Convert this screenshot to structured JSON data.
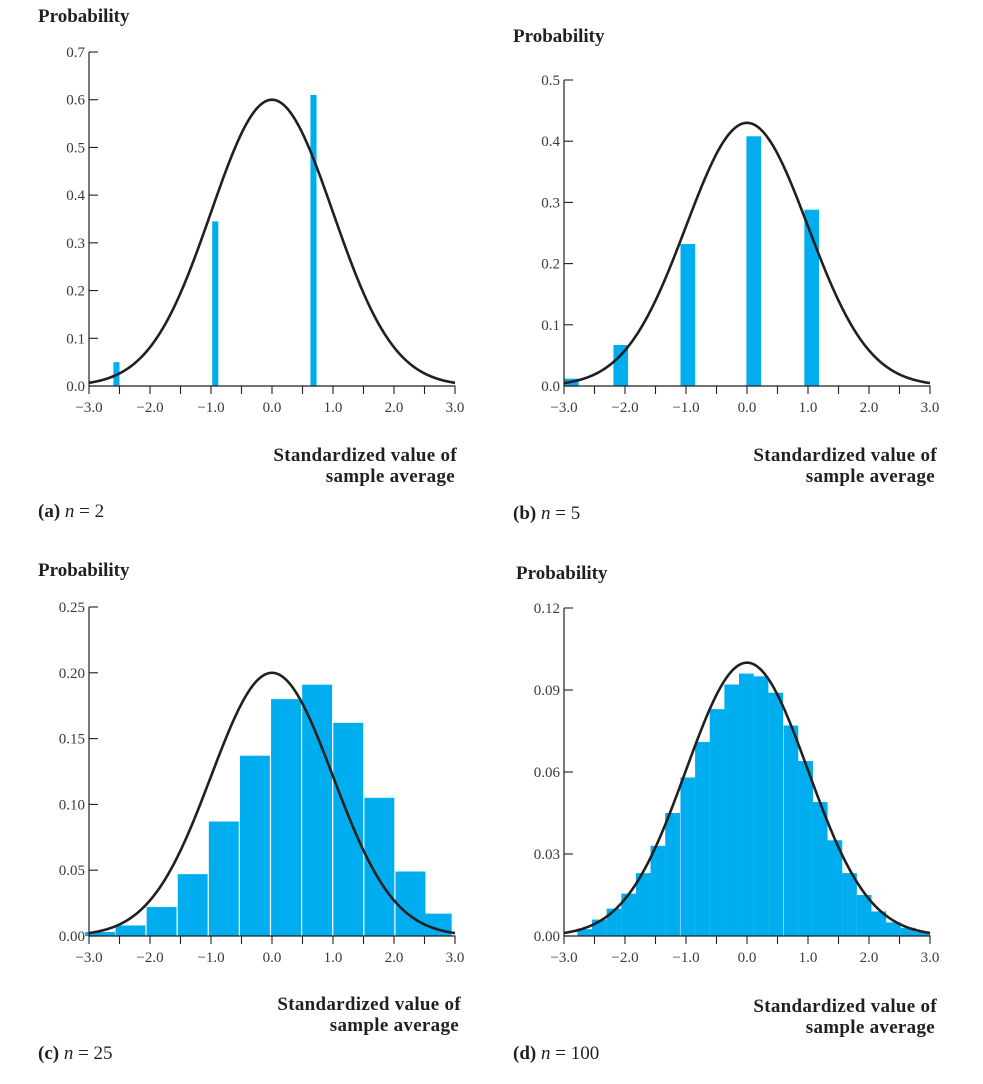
{
  "figure": {
    "bar_color": "#00aeef",
    "curve_color": "#231f20",
    "axis_color": "#231f20"
  },
  "chart_data": [
    {
      "id": "a",
      "type": "bar",
      "title": "Probability",
      "ylabel": "Probability",
      "xlabel_lines": [
        "Standardized value of",
        "sample average"
      ],
      "caption_letter": "(a)",
      "caption_var": "n",
      "caption_eq": " = 2",
      "xlim": [
        -3.0,
        3.0
      ],
      "ylim": [
        0.0,
        0.7
      ],
      "xticks": [
        "−3.0",
        "−2.0",
        "−1.0",
        "0.0",
        "1.0",
        "2.0",
        "3.0"
      ],
      "xtick_values": [
        -3,
        -2,
        -1,
        0,
        1,
        2,
        3
      ],
      "minor_xtick_values": [
        -2.5,
        -1.5,
        -0.5,
        0.5,
        1.5,
        2.5
      ],
      "yticks": [
        "0.0",
        "0.1",
        "0.2",
        "0.3",
        "0.4",
        "0.5",
        "0.6",
        "0.7"
      ],
      "ytick_values": [
        0,
        0.1,
        0.2,
        0.3,
        0.4,
        0.5,
        0.6,
        0.7
      ],
      "bar_width": 0.1,
      "bars": [
        {
          "x": -2.55,
          "value": 0.05
        },
        {
          "x": -0.93,
          "value": 0.345
        },
        {
          "x": 0.68,
          "value": 0.61
        }
      ],
      "normal_curve": {
        "mean": 0,
        "sd": 1,
        "peak": 0.6
      }
    },
    {
      "id": "b",
      "type": "bar",
      "title": "Probability",
      "ylabel": "Probability",
      "xlabel_lines": [
        "Standardized value of",
        "sample average"
      ],
      "caption_letter": "(b)",
      "caption_var": "n",
      "caption_eq": " = 5",
      "xlim": [
        -3.0,
        3.0
      ],
      "ylim": [
        0.0,
        0.5
      ],
      "xticks": [
        "−3.0",
        "−2.0",
        "−1.0",
        "0.0",
        "1.0",
        "2.0",
        "3.0"
      ],
      "xtick_values": [
        -3,
        -2,
        -1,
        0,
        1,
        2,
        3
      ],
      "minor_xtick_values": [
        -2.5,
        -1.5,
        -0.5,
        0.5,
        1.5,
        2.5
      ],
      "yticks": [
        "0.0",
        "0.1",
        "0.2",
        "0.3",
        "0.4",
        "0.5"
      ],
      "ytick_values": [
        0,
        0.1,
        0.2,
        0.3,
        0.4,
        0.5
      ],
      "bar_width": 0.24,
      "bars": [
        {
          "x": -2.88,
          "value": 0.012
        },
        {
          "x": -2.07,
          "value": 0.067
        },
        {
          "x": -0.97,
          "value": 0.232
        },
        {
          "x": 0.11,
          "value": 0.408
        },
        {
          "x": 1.06,
          "value": 0.288
        }
      ],
      "normal_curve": {
        "mean": 0,
        "sd": 1,
        "peak": 0.43
      }
    },
    {
      "id": "c",
      "type": "bar",
      "title": "Probability",
      "ylabel": "Probability",
      "xlabel_lines": [
        "Standardized value of",
        "sample average"
      ],
      "caption_letter": "(c)",
      "caption_var": "n",
      "caption_eq": " = 25",
      "xlim": [
        -3.0,
        3.0
      ],
      "ylim": [
        0.0,
        0.25
      ],
      "xticks": [
        "−3.0",
        "−2.0",
        "−1.0",
        "0.0",
        "1.0",
        "2.0",
        "3.0"
      ],
      "xtick_values": [
        -3,
        -2,
        -1,
        0,
        1,
        2,
        3
      ],
      "minor_xtick_values": [
        -2.5,
        -1.5,
        -0.5,
        0.5,
        1.5,
        2.5
      ],
      "yticks": [
        "0.00",
        "0.05",
        "0.10",
        "0.15",
        "0.20",
        "0.25"
      ],
      "ytick_values": [
        0,
        0.05,
        0.1,
        0.15,
        0.2,
        0.25
      ],
      "bar_width": 0.51,
      "bars": [
        {
          "x": -2.82,
          "value": 0.003
        },
        {
          "x": -2.32,
          "value": 0.008
        },
        {
          "x": -1.81,
          "value": 0.022
        },
        {
          "x": -1.3,
          "value": 0.047
        },
        {
          "x": -0.79,
          "value": 0.087
        },
        {
          "x": -0.28,
          "value": 0.137
        },
        {
          "x": 0.23,
          "value": 0.18
        },
        {
          "x": 0.74,
          "value": 0.191
        },
        {
          "x": 1.25,
          "value": 0.162
        },
        {
          "x": 1.76,
          "value": 0.105
        },
        {
          "x": 2.27,
          "value": 0.049
        },
        {
          "x": 2.7,
          "value": 0.017
        }
      ],
      "normal_curve": {
        "mean": 0,
        "sd": 1,
        "peak": 0.2
      }
    },
    {
      "id": "d",
      "type": "bar",
      "title": "Probability",
      "ylabel": "Probability",
      "xlabel_lines": [
        "Standardized value of",
        "sample average"
      ],
      "caption_letter": "(d)",
      "caption_var": "n",
      "caption_eq": " = 100",
      "xlim": [
        -3.0,
        3.0
      ],
      "ylim": [
        0.0,
        0.12
      ],
      "xticks": [
        "−3.0",
        "−2.0",
        "−1.0",
        "0.0",
        "1.0",
        "2.0",
        "3.0"
      ],
      "xtick_values": [
        -3,
        -2,
        -1,
        0,
        1,
        2,
        3
      ],
      "minor_xtick_values": [
        -2.5,
        -1.5,
        -0.5,
        0.5,
        1.5,
        2.5
      ],
      "yticks": [
        "0.00",
        "0.03",
        "0.06",
        "0.09",
        "0.12"
      ],
      "ytick_values": [
        0,
        0.03,
        0.06,
        0.09,
        0.12
      ],
      "bar_width": 0.242,
      "bars": [
        {
          "x": -2.66,
          "value": 0.0025
        },
        {
          "x": -2.42,
          "value": 0.006
        },
        {
          "x": -2.18,
          "value": 0.01
        },
        {
          "x": -1.94,
          "value": 0.0155
        },
        {
          "x": -1.7,
          "value": 0.023
        },
        {
          "x": -1.46,
          "value": 0.033
        },
        {
          "x": -1.22,
          "value": 0.045
        },
        {
          "x": -0.97,
          "value": 0.058
        },
        {
          "x": -0.73,
          "value": 0.071
        },
        {
          "x": -0.49,
          "value": 0.083
        },
        {
          "x": -0.25,
          "value": 0.092
        },
        {
          "x": -0.01,
          "value": 0.096
        },
        {
          "x": 0.23,
          "value": 0.095
        },
        {
          "x": 0.47,
          "value": 0.089
        },
        {
          "x": 0.72,
          "value": 0.077
        },
        {
          "x": 0.96,
          "value": 0.064
        },
        {
          "x": 1.2,
          "value": 0.049
        },
        {
          "x": 1.44,
          "value": 0.035
        },
        {
          "x": 1.68,
          "value": 0.023
        },
        {
          "x": 1.92,
          "value": 0.015
        },
        {
          "x": 2.16,
          "value": 0.009
        },
        {
          "x": 2.4,
          "value": 0.005
        },
        {
          "x": 2.64,
          "value": 0.003
        },
        {
          "x": 2.88,
          "value": 0.0015
        }
      ],
      "normal_curve": {
        "mean": 0,
        "sd": 1,
        "peak": 0.1
      }
    }
  ]
}
